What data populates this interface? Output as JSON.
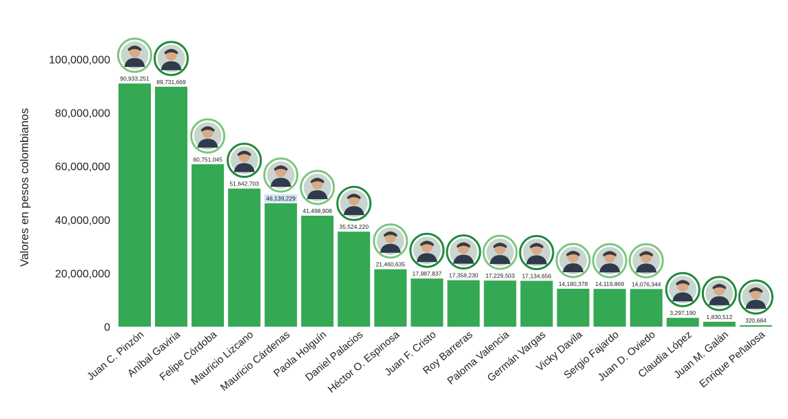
{
  "chart_data": {
    "type": "bar",
    "title": "",
    "xlabel": "",
    "ylabel": "Valores en pesos colombianos",
    "ylim": [
      0,
      100000000
    ],
    "yticks": [
      0,
      20000000,
      40000000,
      60000000,
      80000000,
      100000000
    ],
    "ytick_labels": [
      "0",
      "20,000,000",
      "40,000,000",
      "60,000,000",
      "80,000,000",
      "100,000,000"
    ],
    "grid": false,
    "legend": "none",
    "bar_color": "#34a853",
    "avatar_ring_colors": [
      "#7bc67e",
      "#1f8a3a"
    ],
    "highlight_label_bg": "#cfe3f5",
    "categories": [
      "Juan C. Pinzón",
      "Aníbal Gaviria",
      "Felipe Córdoba",
      "Mauricio Lizcano",
      "Mauricio Cárdenas",
      "Paola Holguín",
      "Daniel Palacios",
      "Héctor O. Espinosa",
      "Juan F. Cristo",
      "Roy Barreras",
      "Paloma Valencia",
      "Germán Vargas",
      "Vicky Davila",
      "Sergio Fajardo",
      "Juan D. Oviedo",
      "Claudia López",
      "Juan M. Galán",
      "Enrique Peñalosa"
    ],
    "values": [
      90933251,
      89731669,
      60751045,
      51642703,
      46139229,
      41498908,
      35524220,
      21460635,
      17987837,
      17358230,
      17229503,
      17134656,
      14180378,
      14119869,
      14076344,
      3297190,
      1830512,
      320684
    ],
    "value_labels": [
      "90,933,251",
      "89,731,669",
      "60,751,045",
      "51,642,703",
      "46,139,229",
      "41,498,908",
      "35,524,220",
      "21,460,635",
      "17,987,837",
      "17,358,230",
      "17,229,503",
      "17,134,656",
      "14,180,378",
      "14,119,869",
      "14,076,344",
      "3,297,190",
      "1,830,512",
      "320,684"
    ],
    "avatars": [
      {
        "icon": "portrait-icon",
        "ring": 0
      },
      {
        "icon": "portrait-icon",
        "ring": 1
      },
      {
        "icon": "portrait-icon",
        "ring": 0
      },
      {
        "icon": "portrait-icon",
        "ring": 1
      },
      {
        "icon": "portrait-icon",
        "ring": 0
      },
      {
        "icon": "portrait-icon",
        "ring": 0
      },
      {
        "icon": "portrait-icon",
        "ring": 1
      },
      {
        "icon": "portrait-icon",
        "ring": 0
      },
      {
        "icon": "portrait-icon",
        "ring": 1
      },
      {
        "icon": "portrait-icon",
        "ring": 1
      },
      {
        "icon": "portrait-icon",
        "ring": 0
      },
      {
        "icon": "portrait-icon",
        "ring": 1
      },
      {
        "icon": "portrait-icon",
        "ring": 0
      },
      {
        "icon": "portrait-icon",
        "ring": 0
      },
      {
        "icon": "portrait-icon",
        "ring": 0
      },
      {
        "icon": "portrait-icon",
        "ring": 1
      },
      {
        "icon": "portrait-icon",
        "ring": 1
      },
      {
        "icon": "portrait-icon",
        "ring": 1
      }
    ],
    "highlighted_index": 4
  }
}
